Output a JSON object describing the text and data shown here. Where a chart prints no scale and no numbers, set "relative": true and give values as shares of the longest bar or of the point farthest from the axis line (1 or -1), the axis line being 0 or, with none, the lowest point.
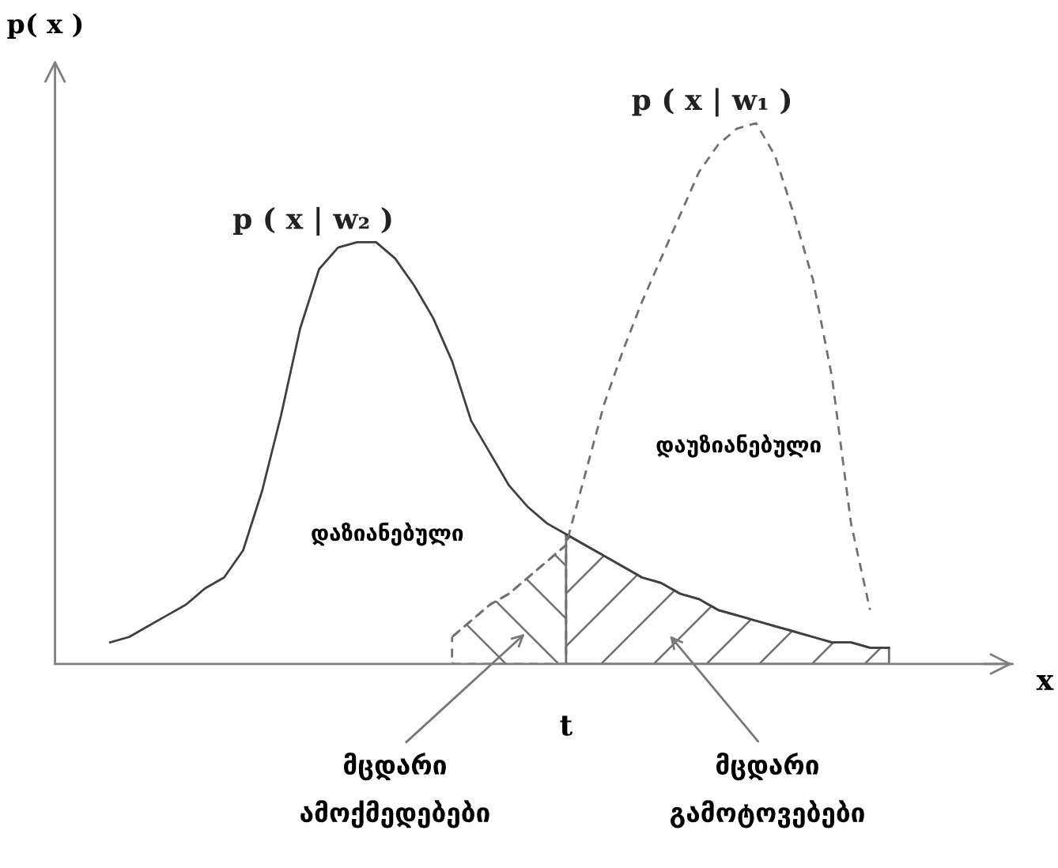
{
  "chart_data": {
    "type": "line",
    "relative": true,
    "xlabel": "x",
    "ylabel": "p( x )",
    "categories": [
      null,
      null,
      null,
      null,
      null,
      null,
      null,
      null,
      null,
      null,
      null,
      null,
      null,
      null,
      null,
      null,
      null,
      null,
      null,
      null,
      null,
      null,
      null,
      null,
      null,
      null,
      null,
      null,
      null,
      null,
      null,
      null,
      null,
      null,
      null,
      null,
      null,
      null,
      null,
      null,
      null,
      null
    ],
    "series": [
      {
        "name": "p ( x | w₂ )",
        "color": "#404040",
        "line_style": "solid",
        "values": [
          0.04,
          0.05,
          0.07,
          0.09,
          0.11,
          0.14,
          0.16,
          0.21,
          0.32,
          0.46,
          0.62,
          0.73,
          0.77,
          0.78,
          0.78,
          0.75,
          0.7,
          0.64,
          0.56,
          0.45,
          0.39,
          0.33,
          0.29,
          0.26,
          0.24,
          0.22,
          0.2,
          0.18,
          0.16,
          0.15,
          0.13,
          0.12,
          0.1,
          0.09,
          0.08,
          0.07,
          0.06,
          0.05,
          0.04,
          0.04,
          0.03,
          0.03
        ]
      },
      {
        "name": "p ( x | w₁ )",
        "color": "#707070",
        "line_style": "dashed",
        "values": [
          null,
          null,
          null,
          null,
          null,
          null,
          null,
          null,
          null,
          null,
          null,
          null,
          null,
          null,
          null,
          null,
          null,
          null,
          0.05,
          0.08,
          0.11,
          0.13,
          0.16,
          0.19,
          0.22,
          0.35,
          0.48,
          0.58,
          0.67,
          0.75,
          0.83,
          0.91,
          0.96,
          0.99,
          1.0,
          0.94,
          0.83,
          0.71,
          0.53,
          0.26,
          0.1,
          null
        ]
      },
      {
        "type": "area",
        "color": "#707070",
        "line_style": "dashed",
        "values": [
          null,
          null,
          null,
          null,
          null,
          null,
          null,
          null,
          null,
          null,
          null,
          null,
          null,
          null,
          null,
          null,
          null,
          null,
          0.05,
          0.08,
          0.11,
          0.13,
          0.16,
          0.19,
          0.22,
          null,
          null,
          null,
          null,
          null,
          null,
          null,
          null,
          null,
          null,
          null,
          null,
          null,
          null,
          null,
          null,
          null
        ]
      },
      {
        "type": "area",
        "color": "#6e6e6e",
        "line_style": "solid",
        "values": [
          null,
          null,
          null,
          null,
          null,
          null,
          null,
          null,
          null,
          null,
          null,
          null,
          null,
          null,
          null,
          null,
          null,
          null,
          null,
          null,
          null,
          null,
          null,
          null,
          0.24,
          0.22,
          0.2,
          0.18,
          0.16,
          0.15,
          0.13,
          0.12,
          0.1,
          0.09,
          0.08,
          0.07,
          0.06,
          0.05,
          0.04,
          0.04,
          0.03,
          0.03
        ]
      }
    ],
    "annotations": [
      "დაზიანებული",
      "დაუზიანებული",
      "t",
      "მცდარი\nამოქმედებები",
      "მცდარი\nგამოტოვებები"
    ]
  }
}
